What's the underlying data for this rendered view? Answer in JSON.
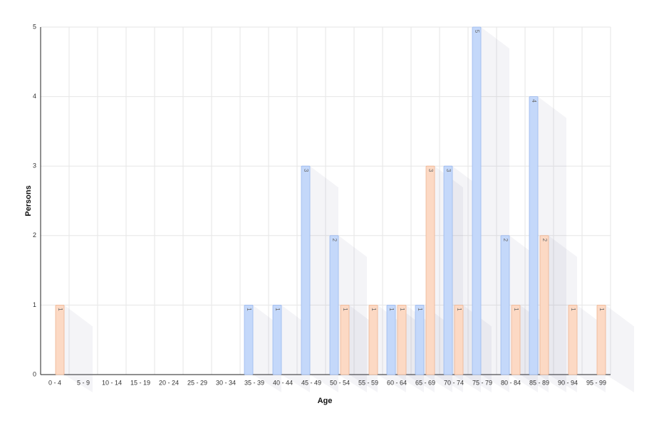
{
  "chart_data": {
    "type": "bar",
    "x_label": "Age",
    "y_label": "Persons",
    "categories": [
      "0 - 4",
      "5 - 9",
      "10 - 14",
      "15 - 19",
      "20 - 24",
      "25 - 29",
      "30 - 34",
      "35 - 39",
      "40 - 44",
      "45 - 49",
      "50 - 54",
      "55 - 59",
      "60 - 64",
      "65 - 69",
      "70 - 74",
      "75 - 79",
      "80 - 84",
      "85 - 89",
      "90 - 94",
      "95 - 99"
    ],
    "series": [
      {
        "color": "#c4d8fa",
        "edge": "#9ab8ee",
        "values": [
          0,
          0,
          0,
          0,
          0,
          0,
          0,
          1,
          1,
          3,
          2,
          0,
          1,
          1,
          3,
          5,
          2,
          4,
          0,
          0
        ]
      },
      {
        "color": "#fcd9c4",
        "edge": "#eeb592",
        "values": [
          1,
          0,
          0,
          0,
          0,
          0,
          0,
          0,
          0,
          0,
          1,
          1,
          1,
          3,
          1,
          0,
          1,
          2,
          1,
          1
        ]
      }
    ],
    "ylim": [
      0,
      5
    ],
    "yticks": [
      0,
      1,
      2,
      3,
      4,
      5
    ],
    "grid": true
  }
}
